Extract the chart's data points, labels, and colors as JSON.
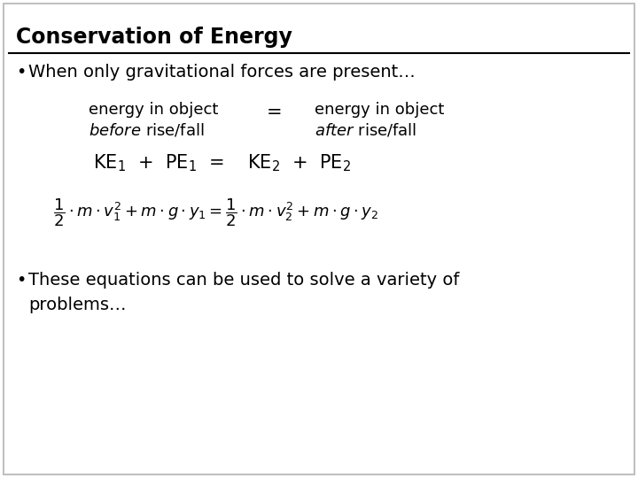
{
  "title": "Conservation of Energy",
  "title_fontsize": 17,
  "background_color": "#ffffff",
  "text_color": "#000000",
  "border_color": "#c0c0c0",
  "bullet1": "When only gravitational forces are present…",
  "bullet2": "These equations can be used to solve a variety of\nproblems…",
  "energy_before_line1": "energy in object",
  "energy_before_line2": "before rise/fall",
  "energy_after_line1": "energy in object",
  "energy_after_line2": "after rise/fall",
  "body_fontsize": 14,
  "eq_fontsize": 15,
  "math_fontsize": 13
}
